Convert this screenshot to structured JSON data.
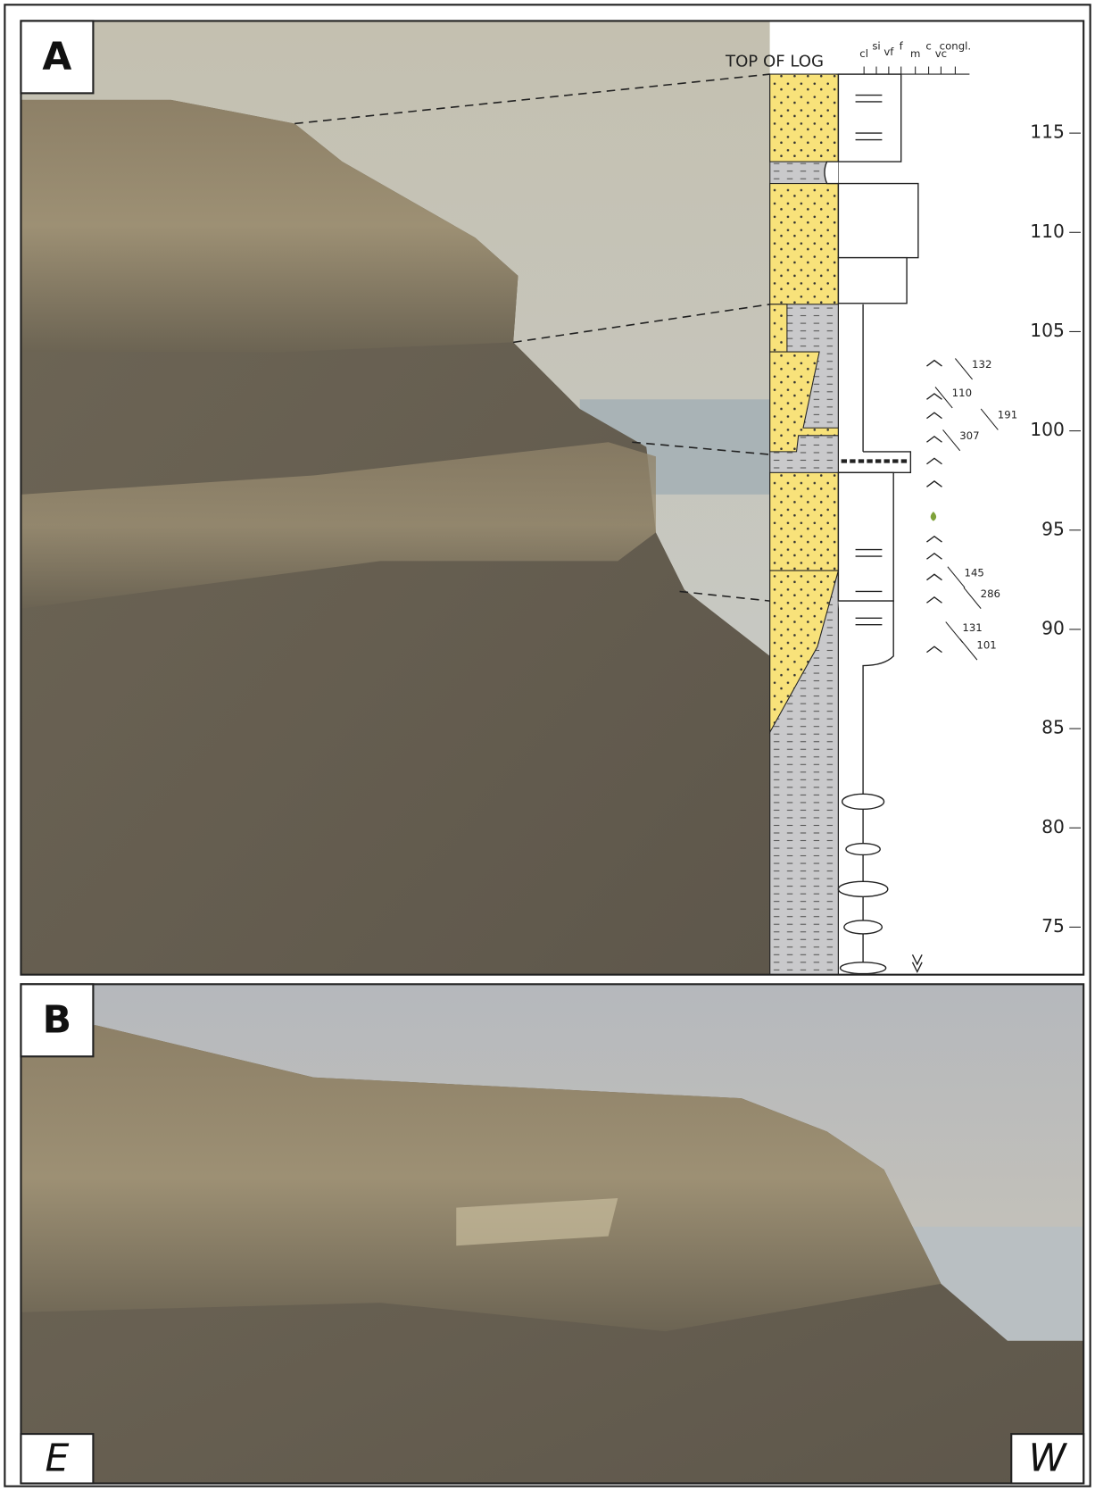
{
  "panels": [
    {
      "label": "A"
    },
    {
      "label": "B"
    }
  ],
  "orientation": {
    "east": "E",
    "west": "W"
  },
  "log": {
    "top_label": "TOP OF LOG",
    "grain_sizes": [
      "cl",
      "si",
      "vf",
      "f",
      "m",
      "c",
      "vc",
      "congl."
    ],
    "depth_ticks": [
      75,
      80,
      85,
      90,
      95,
      100,
      105,
      110,
      115
    ],
    "paleocurrents": [
      132,
      110,
      191,
      307,
      145,
      286,
      131,
      101
    ]
  }
}
